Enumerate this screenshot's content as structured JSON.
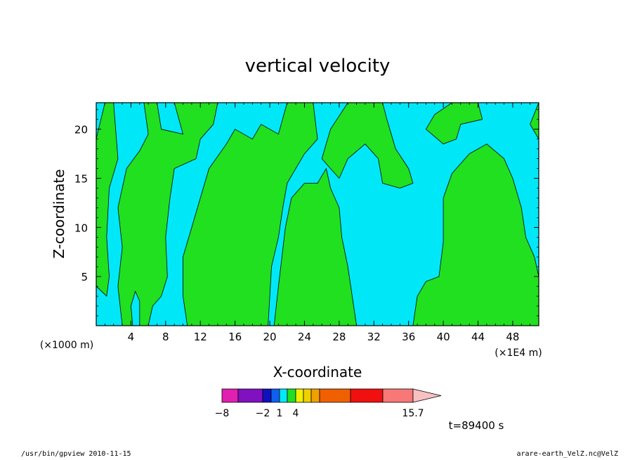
{
  "chart_data": {
    "type": "contour",
    "title": "vertical velocity",
    "xlabel": "X-coordinate",
    "ylabel": "Z-coordinate",
    "x_unit_left": "(×1000 m)",
    "x_unit_right": "(×1E4 m)",
    "xlim": [
      0,
      51
    ],
    "ylim": [
      0,
      22.7
    ],
    "xticks": [
      "4",
      "8",
      "12",
      "16",
      "20",
      "24",
      "28",
      "32",
      "36",
      "40",
      "44",
      "48"
    ],
    "yticks": [
      "5",
      "10",
      "15",
      "20"
    ],
    "time_label": "t=89400 s",
    "colorbar": {
      "colors": [
        "#e020b0",
        "#8010c0",
        "#1010c0",
        "#1060f0",
        "#00e8f8",
        "#20e020",
        "#f0f000",
        "#f0d000",
        "#f0a000",
        "#f06000",
        "#f01010",
        "#f87878",
        "#f8c0c0"
      ],
      "labels": [
        {
          "text": "−8",
          "boundary": 0
        },
        {
          "text": "−2",
          "boundary": 2
        },
        {
          "text": "1",
          "boundary": 4
        },
        {
          "text": "4",
          "boundary": 6
        },
        {
          "text": "15.7",
          "boundary": 12
        }
      ]
    },
    "field_colors": {
      "negative": "#00e8f8",
      "positive": "#20e020"
    },
    "regions": [
      {
        "sign": "positive",
        "pts": [
          [
            0,
            19
          ],
          [
            1,
            22.7
          ],
          [
            2,
            22.7
          ],
          [
            2.5,
            17
          ],
          [
            1.5,
            14
          ],
          [
            1.2,
            9
          ],
          [
            1.5,
            5
          ],
          [
            1.2,
            3
          ],
          [
            0,
            4
          ]
        ]
      },
      {
        "sign": "positive",
        "pts": [
          [
            3,
            0
          ],
          [
            2.5,
            4
          ],
          [
            3,
            8
          ],
          [
            2.5,
            12
          ],
          [
            3.5,
            16
          ],
          [
            5,
            17.8
          ],
          [
            6,
            19.5
          ],
          [
            5.5,
            22.7
          ],
          [
            7,
            22.7
          ],
          [
            7.5,
            20
          ],
          [
            10,
            19.5
          ],
          [
            9,
            22.7
          ],
          [
            14,
            22.7
          ],
          [
            13.5,
            20.5
          ],
          [
            12,
            19
          ],
          [
            11.5,
            17
          ],
          [
            9,
            16
          ],
          [
            8.5,
            13
          ],
          [
            8,
            9
          ],
          [
            8.2,
            5
          ],
          [
            7.5,
            3
          ],
          [
            6.5,
            2
          ],
          [
            6,
            0
          ],
          [
            5,
            0
          ],
          [
            5,
            2.5
          ],
          [
            4.5,
            3.5
          ],
          [
            4,
            2
          ],
          [
            4.2,
            0
          ]
        ]
      },
      {
        "sign": "positive",
        "pts": [
          [
            10.5,
            0
          ],
          [
            10,
            3
          ],
          [
            10,
            7
          ],
          [
            11,
            10
          ],
          [
            12,
            13
          ],
          [
            13,
            16
          ],
          [
            15,
            18.5
          ],
          [
            16,
            20
          ],
          [
            18,
            19
          ],
          [
            19,
            20.5
          ],
          [
            21,
            19.5
          ],
          [
            22,
            22.7
          ],
          [
            25,
            22.7
          ],
          [
            25.5,
            19
          ],
          [
            24,
            17.5
          ],
          [
            23,
            16
          ],
          [
            22,
            14.5
          ],
          [
            21.5,
            12
          ],
          [
            21,
            9
          ],
          [
            20.2,
            6
          ],
          [
            20,
            3
          ],
          [
            19.8,
            0
          ]
        ]
      },
      {
        "sign": "positive",
        "pts": [
          [
            20.5,
            0
          ],
          [
            21,
            4
          ],
          [
            21.8,
            10
          ],
          [
            22.5,
            13
          ],
          [
            24,
            14.5
          ],
          [
            25.5,
            14.5
          ],
          [
            26.5,
            16
          ],
          [
            27,
            14
          ],
          [
            28,
            12
          ],
          [
            28.3,
            9
          ],
          [
            29,
            6
          ],
          [
            29.5,
            3
          ],
          [
            30,
            0
          ]
        ]
      },
      {
        "sign": "positive",
        "pts": [
          [
            26,
            17
          ],
          [
            27,
            20
          ],
          [
            29,
            22.7
          ],
          [
            33,
            22.7
          ],
          [
            33.5,
            21
          ],
          [
            34.5,
            18
          ],
          [
            36,
            16
          ],
          [
            36.5,
            14.5
          ],
          [
            35,
            14
          ],
          [
            33,
            14.5
          ],
          [
            32.5,
            17
          ],
          [
            31,
            18.5
          ],
          [
            29,
            17
          ],
          [
            28,
            15
          ],
          [
            27,
            16
          ]
        ]
      },
      {
        "sign": "positive",
        "pts": [
          [
            38,
            20
          ],
          [
            39,
            21.5
          ],
          [
            41,
            22.7
          ],
          [
            44,
            22.7
          ],
          [
            44.5,
            21
          ],
          [
            42,
            20.5
          ],
          [
            41.5,
            19
          ],
          [
            40,
            18.5
          ]
        ]
      },
      {
        "sign": "positive",
        "pts": [
          [
            36.5,
            0
          ],
          [
            37,
            3
          ],
          [
            38,
            4.5
          ],
          [
            39.5,
            5
          ],
          [
            40,
            8.5
          ],
          [
            40,
            13
          ],
          [
            41,
            15.5
          ],
          [
            43,
            17.5
          ],
          [
            45,
            18.5
          ],
          [
            47,
            17
          ],
          [
            48,
            15
          ],
          [
            49,
            12
          ],
          [
            49.5,
            9
          ],
          [
            50.5,
            7
          ],
          [
            51,
            5
          ],
          [
            51,
            0
          ]
        ]
      },
      {
        "sign": "positive",
        "pts": [
          [
            50,
            20.5
          ],
          [
            51,
            22.7
          ],
          [
            51,
            19
          ]
        ]
      }
    ]
  },
  "footer": {
    "left": "/usr/bin/gpview  2010-11-15",
    "right": "arare-earth_VelZ.nc@VelZ"
  }
}
